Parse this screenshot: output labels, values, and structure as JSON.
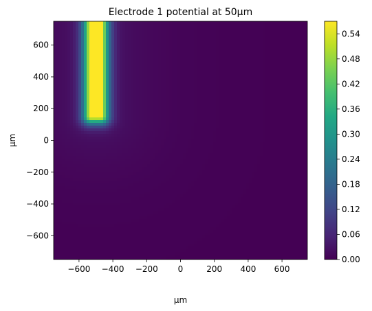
{
  "chart_data": {
    "type": "heatmap",
    "title": "Electrode 1 potential at 50µm",
    "xlabel": "µm",
    "ylabel": "µm",
    "xlim": [
      -750,
      750
    ],
    "ylim": [
      -750,
      750
    ],
    "xticks": [
      -600,
      -400,
      -200,
      0,
      200,
      400,
      600
    ],
    "xtick_labels": [
      "−600",
      "−400",
      "−200",
      "0",
      "200",
      "400",
      "600"
    ],
    "yticks": [
      -600,
      -400,
      -200,
      0,
      200,
      400,
      600
    ],
    "ytick_labels": [
      "−600",
      "−400",
      "−200",
      "0",
      "200",
      "400",
      "600"
    ],
    "colormap": "viridis",
    "colorbar": {
      "range": [
        0.0,
        0.57
      ],
      "ticks": [
        0.0,
        0.06,
        0.12,
        0.18,
        0.24,
        0.3,
        0.36,
        0.42,
        0.48,
        0.54
      ],
      "tick_labels": [
        "0.00",
        "0.06",
        "0.12",
        "0.18",
        "0.24",
        "0.30",
        "0.36",
        "0.42",
        "0.48",
        "0.54"
      ]
    },
    "electrode": {
      "x_center": -500,
      "x_halfwidth": 30,
      "y_start": 150,
      "y_end": 750,
      "peak_value": 0.56
    },
    "grid": false
  }
}
